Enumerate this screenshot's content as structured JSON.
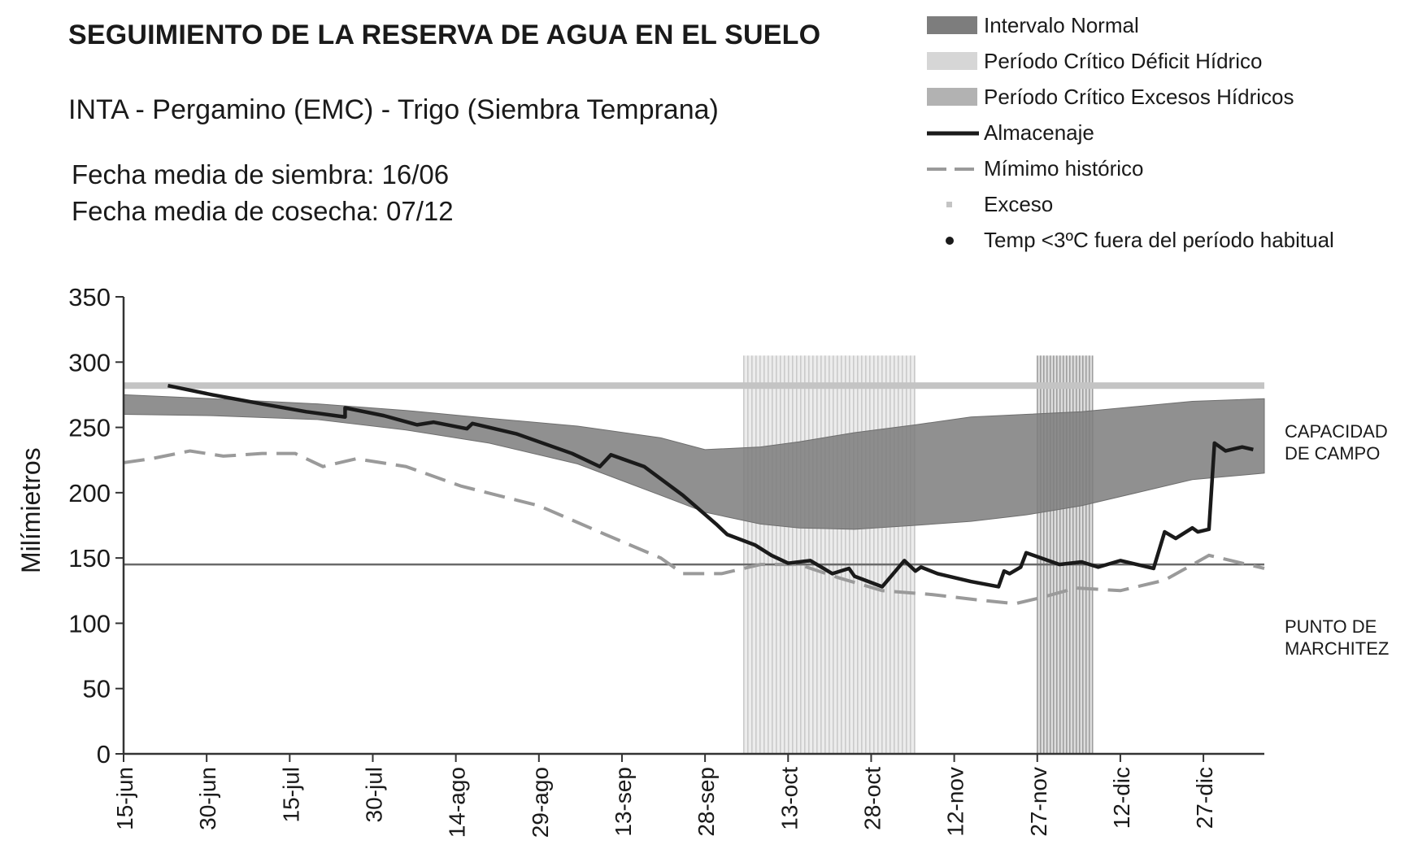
{
  "header": {
    "title": "SEGUIMIENTO DE LA RESERVA DE AGUA EN EL SUELO",
    "subtitle": "INTA - Pergamino (EMC) - Trigo (Siembra Temprana)",
    "sowing": "Fecha media de siembra: 16/06",
    "harvest": "Fecha media de cosecha: 07/12"
  },
  "legend": [
    {
      "label": "Intervalo Normal",
      "kind": "band",
      "color": "#7d7d7d"
    },
    {
      "label": "Período Crítico Déficit Hídrico",
      "kind": "band",
      "color": "#d6d6d6"
    },
    {
      "label": "Período Crítico Excesos Hídricos",
      "kind": "band",
      "color": "#b2b2b2"
    },
    {
      "label": "Almacenaje",
      "kind": "line",
      "color": "#1a1a1a"
    },
    {
      "label": "Mímimo histórico",
      "kind": "dash",
      "color": "#9a9a9a"
    },
    {
      "label": "Exceso",
      "kind": "square",
      "color": "#c4c4c4"
    },
    {
      "label": "Temp <3ºC fuera del período habitual",
      "kind": "dot",
      "color": "#1a1a1a"
    }
  ],
  "references": {
    "field_capacity": {
      "value": 282,
      "label_line1": "CAPACIDAD",
      "label_line2": "DE CAMPO"
    },
    "wilting_point": {
      "value": 145,
      "label_line1": "PUNTO DE",
      "label_line2": "MARCHITEZ"
    }
  },
  "chart_data": {
    "type": "line",
    "ylabel": "Milímietros",
    "ylim": [
      0,
      350
    ],
    "yticks": [
      0,
      50,
      100,
      150,
      200,
      250,
      300,
      350
    ],
    "xlim": [
      "2000-06-15",
      "2001-01-07"
    ],
    "xticks": [
      {
        "date": "2000-06-15",
        "label": "15-jun"
      },
      {
        "date": "2000-06-30",
        "label": "30-jun"
      },
      {
        "date": "2000-07-15",
        "label": "15-jul"
      },
      {
        "date": "2000-07-30",
        "label": "30-jul"
      },
      {
        "date": "2000-08-14",
        "label": "14-ago"
      },
      {
        "date": "2000-08-29",
        "label": "29-ago"
      },
      {
        "date": "2000-09-13",
        "label": "13-sep"
      },
      {
        "date": "2000-09-28",
        "label": "28-sep"
      },
      {
        "date": "2000-10-13",
        "label": "13-oct"
      },
      {
        "date": "2000-10-28",
        "label": "28-oct"
      },
      {
        "date": "2000-11-12",
        "label": "12-nov"
      },
      {
        "date": "2000-11-27",
        "label": "27-nov"
      },
      {
        "date": "2000-12-12",
        "label": "12-dic"
      },
      {
        "date": "2000-12-27",
        "label": "27-dic"
      }
    ],
    "normal_interval": {
      "x": [
        "2000-06-15",
        "2000-07-01",
        "2000-07-20",
        "2000-08-05",
        "2000-08-20",
        "2000-09-05",
        "2000-09-20",
        "2000-09-28",
        "2000-10-08",
        "2000-10-15",
        "2000-10-25",
        "2000-11-05",
        "2000-11-15",
        "2000-11-25",
        "2000-12-05",
        "2000-12-15",
        "2000-12-25",
        "2001-01-07"
      ],
      "upper": [
        275,
        272,
        268,
        263,
        257,
        251,
        242,
        233,
        235,
        239,
        246,
        252,
        258,
        260,
        262,
        266,
        270,
        272
      ],
      "lower": [
        260,
        259,
        256,
        248,
        238,
        222,
        198,
        185,
        176,
        173,
        172,
        175,
        178,
        183,
        190,
        200,
        210,
        215
      ]
    },
    "critical_deficit_band": {
      "start": "2000-10-05",
      "end": "2000-11-05",
      "low": 0,
      "high": 305
    },
    "critical_excess_band": {
      "start": "2000-11-27",
      "end": "2000-12-07",
      "low": 0,
      "high": 305
    },
    "series": [
      {
        "name": "Almacenaje",
        "x": [
          "2000-06-23",
          "2000-07-01",
          "2000-07-10",
          "2000-07-18",
          "2000-07-25",
          "2000-07-25",
          "2000-08-01",
          "2000-08-07",
          "2000-08-10",
          "2000-08-16",
          "2000-08-17",
          "2000-08-25",
          "2000-09-04",
          "2000-09-09",
          "2000-09-11",
          "2000-09-17",
          "2000-09-24",
          "2000-09-30",
          "2000-10-02",
          "2000-10-07",
          "2000-10-10",
          "2000-10-13",
          "2000-10-17",
          "2000-10-21",
          "2000-10-24",
          "2000-10-25",
          "2000-10-30",
          "2000-11-03",
          "2000-11-05",
          "2000-11-06",
          "2000-11-09",
          "2000-11-15",
          "2000-11-20",
          "2000-11-21",
          "2000-11-22",
          "2000-11-24",
          "2000-11-25",
          "2000-11-29",
          "2000-12-01",
          "2000-12-05",
          "2000-12-08",
          "2000-12-12",
          "2000-12-18",
          "2000-12-20",
          "2000-12-22",
          "2000-12-25",
          "2000-12-26",
          "2000-12-28",
          "2000-12-29",
          "2000-12-31",
          "2001-01-03",
          "2001-01-05"
        ],
        "y": [
          282,
          275,
          268,
          262,
          258,
          265,
          259,
          252,
          254,
          249,
          253,
          245,
          230,
          220,
          229,
          220,
          198,
          176,
          168,
          160,
          152,
          146,
          148,
          138,
          142,
          136,
          128,
          148,
          140,
          143,
          138,
          132,
          128,
          140,
          138,
          143,
          154,
          148,
          145,
          147,
          143,
          148,
          142,
          170,
          165,
          173,
          170,
          172,
          238,
          232,
          235,
          233
        ]
      },
      {
        "name": "Mímimo histórico",
        "x": [
          "2000-06-15",
          "2000-06-20",
          "2000-06-27",
          "2000-07-03",
          "2000-07-10",
          "2000-07-16",
          "2000-07-21",
          "2000-07-27",
          "2000-08-05",
          "2000-08-15",
          "2000-08-29",
          "2000-09-10",
          "2000-09-20",
          "2000-09-24",
          "2000-10-01",
          "2000-10-08",
          "2000-10-15",
          "2000-10-22",
          "2000-10-30",
          "2000-11-08",
          "2000-11-16",
          "2000-11-23",
          "2000-11-28",
          "2000-12-04",
          "2000-12-12",
          "2000-12-20",
          "2000-12-28",
          "2001-01-07"
        ],
        "y": [
          223,
          226,
          232,
          228,
          230,
          230,
          220,
          226,
          220,
          205,
          190,
          168,
          150,
          138,
          138,
          145,
          145,
          135,
          125,
          122,
          118,
          115,
          120,
          127,
          125,
          133,
          152,
          142
        ]
      }
    ]
  }
}
